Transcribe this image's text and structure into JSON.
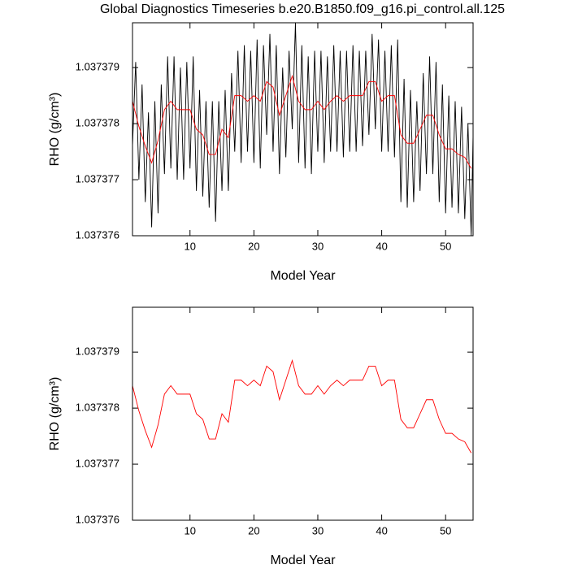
{
  "chart_data": [
    {
      "type": "line",
      "title": "Global Diagnostics Timeseries b.e20.B1850.f09_g16.pi_control.all.125",
      "x_label": "Model Year",
      "y_label": "RHO (g/cm³)",
      "xlim": [
        1,
        54.3
      ],
      "xticks": [
        10,
        20,
        30,
        40,
        50
      ],
      "ylim": [
        1.037376,
        1.0373798
      ],
      "yticks": [
        1.037376,
        1.037377,
        1.037378,
        1.037379
      ],
      "series": [
        {
          "color": "#000000",
          "x": [
            1,
            1.5,
            2,
            2.5,
            3,
            3.5,
            4,
            4.5,
            5,
            5.5,
            6,
            6.5,
            7,
            7.5,
            8,
            8.5,
            9,
            9.5,
            10,
            10.5,
            11,
            11.5,
            12,
            12.5,
            13,
            13.5,
            14,
            14.5,
            15,
            15.5,
            16,
            16.5,
            17,
            17.5,
            18,
            18.5,
            19,
            19.5,
            20,
            20.5,
            21,
            21.5,
            22,
            22.5,
            23,
            23.5,
            24,
            24.5,
            25,
            25.5,
            26,
            26.5,
            27,
            27.5,
            28,
            28.5,
            29,
            29.5,
            30,
            30.5,
            31,
            31.5,
            32,
            32.5,
            33,
            33.5,
            34,
            34.5,
            35,
            35.5,
            36,
            36.5,
            37,
            37.5,
            38,
            38.5,
            39,
            39.5,
            40,
            40.5,
            41,
            41.5,
            42,
            42.5,
            43,
            43.5,
            44,
            44.5,
            45,
            45.5,
            46,
            46.5,
            47,
            47.5,
            48,
            48.5,
            49,
            49.5,
            50,
            50.5,
            51,
            51.5,
            52,
            52.5,
            53,
            53.5,
            54,
            54.3
          ],
          "values": [
            1.0373776,
            1.0373791,
            1.037377,
            1.0373787,
            1.0373766,
            1.0373782,
            1.03737615,
            1.0373784,
            1.0373764,
            1.0373787,
            1.0373771,
            1.0373792,
            1.0373772,
            1.0373792,
            1.037377,
            1.037379,
            1.037377,
            1.0373791,
            1.0373772,
            1.0373792,
            1.0373768,
            1.0373786,
            1.0373767,
            1.0373784,
            1.0373765,
            1.0373784,
            1.03737625,
            1.0373784,
            1.0373768,
            1.0373786,
            1.0373768,
            1.0373789,
            1.0373775,
            1.0373793,
            1.0373773,
            1.0373794,
            1.0373775,
            1.0373793,
            1.0373773,
            1.0373795,
            1.0373772,
            1.0373794,
            1.0373778,
            1.0373796,
            1.0373775,
            1.0373794,
            1.0373771,
            1.037379,
            1.0373774,
            1.0373793,
            1.0373779,
            1.0373798,
            1.0373773,
            1.0373794,
            1.0373772,
            1.0373792,
            1.0373771,
            1.0373793,
            1.0373775,
            1.0373793,
            1.0373773,
            1.0373792,
            1.0373775,
            1.0373794,
            1.0373775,
            1.0373793,
            1.0373774,
            1.0373793,
            1.0373775,
            1.0373794,
            1.0373775,
            1.0373793,
            1.0373776,
            1.0373793,
            1.0373778,
            1.0373796,
            1.0373779,
            1.0373795,
            1.0373775,
            1.0373793,
            1.0373775,
            1.0373794,
            1.0373774,
            1.0373795,
            1.0373766,
            1.0373788,
            1.0373765,
            1.0373786,
            1.0373766,
            1.0373784,
            1.0373768,
            1.0373789,
            1.0373771,
            1.0373792,
            1.0373771,
            1.0373791,
            1.0373766,
            1.0373787,
            1.0373764,
            1.0373785,
            1.0373765,
            1.0373784,
            1.0373764,
            1.0373783,
            1.0373763,
            1.037378,
            1.037376,
            1.0373778
          ]
        },
        {
          "color": "#ff0000",
          "x": [
            1,
            2,
            3,
            4,
            5,
            6,
            7,
            8,
            9,
            10,
            11,
            12,
            13,
            14,
            15,
            16,
            17,
            18,
            19,
            20,
            21,
            22,
            23,
            24,
            25,
            26,
            27,
            28,
            29,
            30,
            31,
            32,
            33,
            34,
            35,
            36,
            37,
            38,
            39,
            40,
            41,
            42,
            43,
            44,
            45,
            46,
            47,
            48,
            49,
            50,
            51,
            52,
            53,
            54
          ],
          "values": [
            1.0373784,
            1.03737795,
            1.0373776,
            1.0373773,
            1.0373777,
            1.03737825,
            1.0373784,
            1.03737825,
            1.03737825,
            1.03737825,
            1.0373779,
            1.0373778,
            1.03737745,
            1.03737745,
            1.0373779,
            1.03737775,
            1.0373785,
            1.0373785,
            1.0373784,
            1.0373785,
            1.0373784,
            1.03737875,
            1.03737865,
            1.03737815,
            1.0373785,
            1.03737885,
            1.0373784,
            1.03737825,
            1.03737825,
            1.0373784,
            1.03737825,
            1.0373784,
            1.0373785,
            1.0373784,
            1.0373785,
            1.0373785,
            1.0373785,
            1.03737875,
            1.03737875,
            1.0373784,
            1.0373785,
            1.0373785,
            1.0373778,
            1.03737765,
            1.03737765,
            1.0373779,
            1.03737815,
            1.03737815,
            1.0373778,
            1.03737755,
            1.03737755,
            1.03737745,
            1.0373774,
            1.0373772
          ]
        }
      ]
    },
    {
      "type": "line",
      "x_label": "Model Year",
      "y_label": "RHO (g/cm³)",
      "xlim": [
        1,
        54.3
      ],
      "xticks": [
        10,
        20,
        30,
        40,
        50
      ],
      "ylim": [
        1.037376,
        1.0373798
      ],
      "yticks": [
        1.037376,
        1.037377,
        1.037378,
        1.037379
      ],
      "series": [
        {
          "color": "#ff0000",
          "x": [
            1,
            2,
            3,
            4,
            5,
            6,
            7,
            8,
            9,
            10,
            11,
            12,
            13,
            14,
            15,
            16,
            17,
            18,
            19,
            20,
            21,
            22,
            23,
            24,
            25,
            26,
            27,
            28,
            29,
            30,
            31,
            32,
            33,
            34,
            35,
            36,
            37,
            38,
            39,
            40,
            41,
            42,
            43,
            44,
            45,
            46,
            47,
            48,
            49,
            50,
            51,
            52,
            53,
            54
          ],
          "values": [
            1.0373784,
            1.03737795,
            1.0373776,
            1.0373773,
            1.0373777,
            1.03737825,
            1.0373784,
            1.03737825,
            1.03737825,
            1.03737825,
            1.0373779,
            1.0373778,
            1.03737745,
            1.03737745,
            1.0373779,
            1.03737775,
            1.0373785,
            1.0373785,
            1.0373784,
            1.0373785,
            1.0373784,
            1.03737875,
            1.03737865,
            1.03737815,
            1.0373785,
            1.03737885,
            1.0373784,
            1.03737825,
            1.03737825,
            1.0373784,
            1.03737825,
            1.0373784,
            1.0373785,
            1.0373784,
            1.0373785,
            1.0373785,
            1.0373785,
            1.03737875,
            1.03737875,
            1.0373784,
            1.0373785,
            1.0373785,
            1.0373778,
            1.03737765,
            1.03737765,
            1.0373779,
            1.03737815,
            1.03737815,
            1.0373778,
            1.03737755,
            1.03737755,
            1.03737745,
            1.0373774,
            1.0373772
          ]
        }
      ]
    }
  ]
}
